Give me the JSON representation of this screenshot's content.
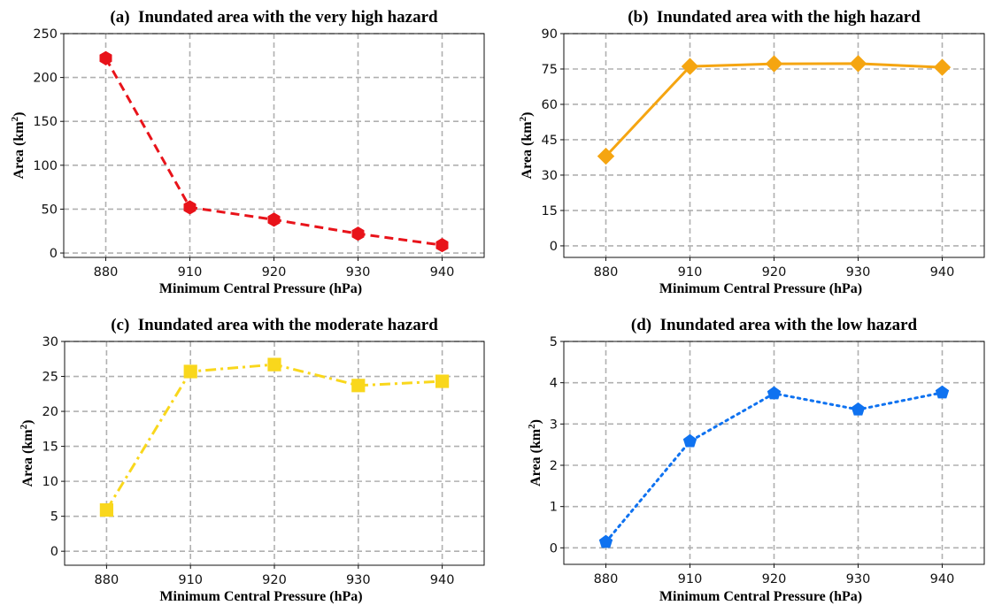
{
  "chart_data": [
    {
      "type": "line",
      "panel": "a",
      "title": "(a)  Inundated area with the very high hazard",
      "xlabel": "Minimum Central Pressure (hPa)",
      "ylabel": "Area (km",
      "ylabel_sup": "2",
      "ylabel_close": ")",
      "categories": [
        "880",
        "910",
        "920",
        "930",
        "940"
      ],
      "series": [
        {
          "name": "very high hazard",
          "values": [
            222,
            52,
            38,
            22,
            9
          ],
          "color": "#e8131a",
          "line_style": "dashed",
          "marker": "hexagon"
        }
      ],
      "yticks": [
        0,
        50,
        100,
        150,
        200,
        250
      ],
      "ylim": [
        -5,
        250
      ],
      "grid": true
    },
    {
      "type": "line",
      "panel": "b",
      "title": "(b)  Inundated area with the high hazard",
      "xlabel": "Minimum Central Pressure (hPa)",
      "ylabel": "Area (km",
      "ylabel_sup": "2",
      "ylabel_close": ")",
      "categories": [
        "880",
        "910",
        "920",
        "930",
        "940"
      ],
      "series": [
        {
          "name": "high hazard",
          "values": [
            38,
            76.1,
            77.2,
            77.3,
            75.7
          ],
          "color": "#f5a511",
          "line_style": "solid",
          "marker": "diamond"
        }
      ],
      "yticks": [
        0,
        15,
        30,
        45,
        60,
        75,
        90
      ],
      "ylim": [
        -4.9,
        90
      ],
      "grid": true
    },
    {
      "type": "line",
      "panel": "c",
      "title": "(c)  Inundated area with the moderate hazard",
      "xlabel": "Minimum Central Pressure (hPa)",
      "ylabel": "Area (km",
      "ylabel_sup": "2",
      "ylabel_close": ")",
      "categories": [
        "880",
        "910",
        "920",
        "930",
        "940"
      ],
      "series": [
        {
          "name": "moderate hazard",
          "values": [
            5.9,
            25.7,
            26.7,
            23.7,
            24.3
          ],
          "color": "#f9d71c",
          "line_style": "dashdot",
          "marker": "square"
        }
      ],
      "yticks": [
        0,
        5,
        10,
        15,
        20,
        25,
        30
      ],
      "ylim": [
        -2,
        30
      ],
      "grid": true
    },
    {
      "type": "line",
      "panel": "d",
      "title": "(d)  Inundated area with the low hazard",
      "xlabel": "Minimum Central Pressure (hPa)",
      "ylabel": "Area (km",
      "ylabel_sup": "2",
      "ylabel_close": ")",
      "categories": [
        "880",
        "910",
        "920",
        "930",
        "940"
      ],
      "series": [
        {
          "name": "low hazard",
          "values": [
            0.14,
            2.58,
            3.74,
            3.35,
            3.76
          ],
          "color": "#0f72f0",
          "line_style": "dotted",
          "marker": "pentagon"
        }
      ],
      "yticks": [
        0,
        1,
        2,
        3,
        4,
        5
      ],
      "ylim": [
        -0.4,
        5
      ],
      "grid": true
    }
  ]
}
